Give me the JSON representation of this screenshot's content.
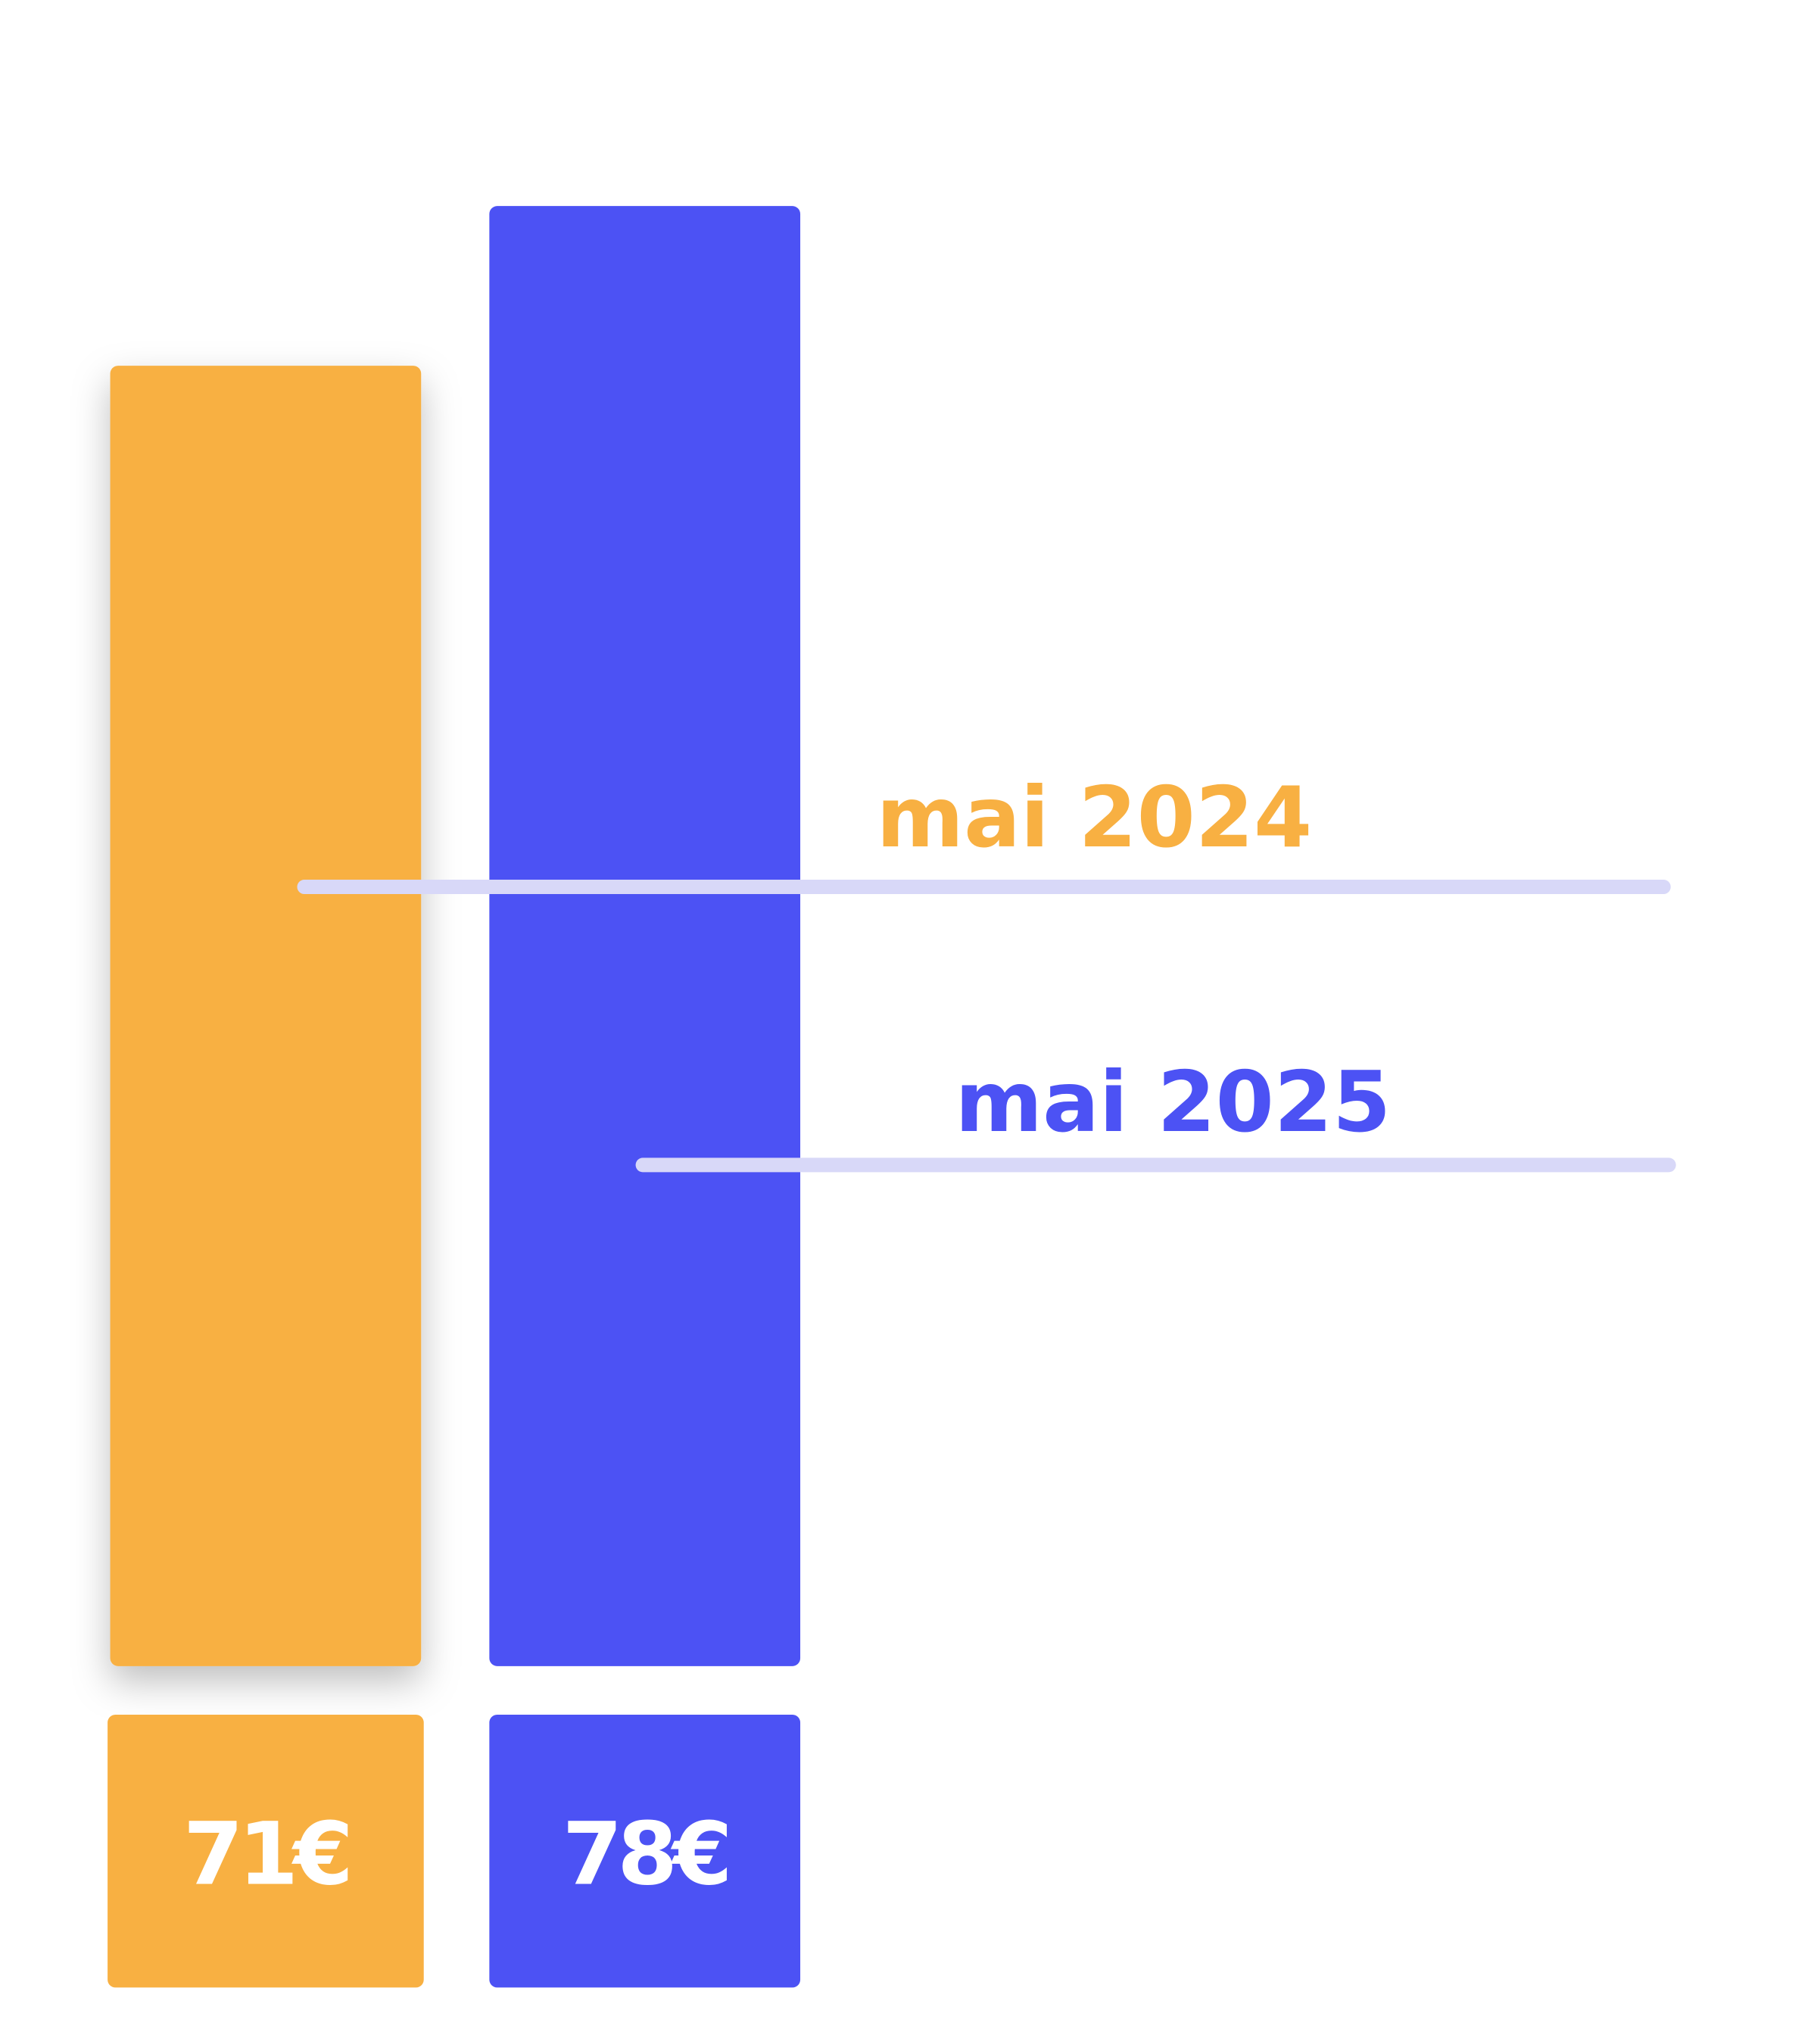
{
  "chart_data": {
    "type": "bar",
    "categories": [
      "mai 2024",
      "mai 2025"
    ],
    "values": [
      71,
      78
    ],
    "value_labels": [
      "71€",
      "78€"
    ],
    "colors": [
      "#F8B042",
      "#4C52F4"
    ],
    "ylim": [
      14,
      78
    ]
  }
}
